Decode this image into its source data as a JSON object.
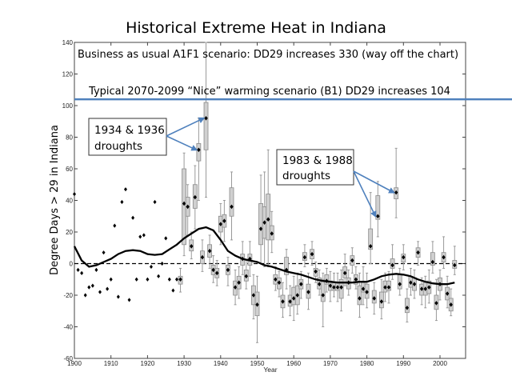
{
  "chart_data": {
    "type": "box",
    "title": "Historical Extreme Heat in Indiana",
    "xlabel": "Year",
    "ylabel": "Degree Days > 29 in Indiana",
    "xlim": [
      1900,
      2007
    ],
    "ylim": [
      -60,
      140
    ],
    "xticks": [
      1900,
      1910,
      1920,
      1930,
      1940,
      1950,
      1960,
      1970,
      1980,
      1990,
      2000
    ],
    "yticks": [
      -60,
      -40,
      -20,
      0,
      20,
      40,
      60,
      80,
      100,
      120,
      140
    ],
    "grid": false,
    "zero_line": {
      "value": 0,
      "style": "dashed"
    },
    "reference_line": {
      "value": 104,
      "color": "#4f81bd",
      "label": "Typical 2070-2099 “Nice” warming scenario (B1) DD29 increases 104"
    },
    "note_top": "Business as usual A1F1 scenario: DD29 increases 330 (way off the chart)",
    "annotations": [
      {
        "text_line1": "1934 & 1936",
        "text_line2": "droughts",
        "targets": [
          [
            1934,
            72
          ],
          [
            1936,
            92
          ]
        ]
      },
      {
        "text_line1": "1983 & 1988",
        "text_line2": "droughts",
        "targets": [
          [
            1983,
            30
          ],
          [
            1988,
            45
          ]
        ]
      }
    ],
    "points": [
      {
        "year": 1900,
        "value": 44
      },
      {
        "year": 1901,
        "value": -4
      },
      {
        "year": 1902,
        "value": -6
      },
      {
        "year": 1903,
        "value": -20
      },
      {
        "year": 1904,
        "value": -15
      },
      {
        "year": 1905,
        "value": -14
      },
      {
        "year": 1906,
        "value": -4
      },
      {
        "year": 1907,
        "value": -18
      },
      {
        "year": 1908,
        "value": 7
      },
      {
        "year": 1909,
        "value": -16
      },
      {
        "year": 1910,
        "value": -10
      },
      {
        "year": 1911,
        "value": 24
      },
      {
        "year": 1912,
        "value": -21
      },
      {
        "year": 1913,
        "value": 39
      },
      {
        "year": 1914,
        "value": 47
      },
      {
        "year": 1915,
        "value": -23
      },
      {
        "year": 1916,
        "value": 29
      },
      {
        "year": 1917,
        "value": -10
      },
      {
        "year": 1918,
        "value": 17
      },
      {
        "year": 1919,
        "value": 18
      },
      {
        "year": 1920,
        "value": -10
      },
      {
        "year": 1921,
        "value": -2
      },
      {
        "year": 1922,
        "value": 39
      },
      {
        "year": 1923,
        "value": -8
      },
      {
        "year": 1924,
        "value": 0
      },
      {
        "year": 1925,
        "value": 16
      },
      {
        "year": 1926,
        "value": -10
      },
      {
        "year": 1927,
        "value": -17
      },
      {
        "year": 1928,
        "value": -10
      }
    ],
    "boxes": [
      {
        "year": 1929,
        "median": -10,
        "q1": -13,
        "q3": -8,
        "wlo": -18,
        "whi": -3
      },
      {
        "year": 1930,
        "median": 38,
        "q1": 12,
        "q3": 60,
        "wlo": 5,
        "whi": 70
      },
      {
        "year": 1931,
        "median": 36,
        "q1": 30,
        "q3": 42,
        "wlo": 18,
        "whi": 50
      },
      {
        "year": 1932,
        "median": 11,
        "q1": 8,
        "q3": 15,
        "wlo": 3,
        "whi": 20
      },
      {
        "year": 1933,
        "median": 42,
        "q1": 35,
        "q3": 50,
        "wlo": 22,
        "whi": 62
      },
      {
        "year": 1934,
        "median": 72,
        "q1": 65,
        "q3": 76,
        "wlo": 40,
        "whi": 92
      },
      {
        "year": 1935,
        "median": 4,
        "q1": 0,
        "q3": 8,
        "wlo": -5,
        "whi": 15
      },
      {
        "year": 1936,
        "median": 92,
        "q1": 72,
        "q3": 102,
        "wlo": 42,
        "whi": 140
      },
      {
        "year": 1937,
        "median": 8,
        "q1": 4,
        "q3": 12,
        "wlo": -3,
        "whi": 18
      },
      {
        "year": 1938,
        "median": -4,
        "q1": -7,
        "q3": -1,
        "wlo": -12,
        "whi": 5
      },
      {
        "year": 1939,
        "median": -6,
        "q1": -9,
        "q3": -3,
        "wlo": -14,
        "whi": 2
      },
      {
        "year": 1940,
        "median": 25,
        "q1": 20,
        "q3": 30,
        "wlo": 12,
        "whi": 38
      },
      {
        "year": 1941,
        "median": 27,
        "q1": 23,
        "q3": 31,
        "wlo": 14,
        "whi": 40
      },
      {
        "year": 1942,
        "median": -4,
        "q1": -7,
        "q3": -1,
        "wlo": -14,
        "whi": 4
      },
      {
        "year": 1943,
        "median": 36,
        "q1": 30,
        "q3": 48,
        "wlo": 15,
        "whi": 58
      },
      {
        "year": 1944,
        "median": -15,
        "q1": -20,
        "q3": -11,
        "wlo": -26,
        "whi": -4
      },
      {
        "year": 1945,
        "median": -12,
        "q1": -16,
        "q3": -8,
        "wlo": -22,
        "whi": -2
      },
      {
        "year": 1946,
        "median": 3,
        "q1": -1,
        "q3": 6,
        "wlo": -7,
        "whi": 14
      },
      {
        "year": 1947,
        "median": -8,
        "q1": -11,
        "q3": -4,
        "wlo": -16,
        "whi": 2
      },
      {
        "year": 1948,
        "median": 3,
        "q1": -1,
        "q3": 6,
        "wlo": -8,
        "whi": 14
      },
      {
        "year": 1949,
        "median": -20,
        "q1": -26,
        "q3": -14,
        "wlo": -35,
        "whi": -7
      },
      {
        "year": 1950,
        "median": -26,
        "q1": -33,
        "q3": -18,
        "wlo": -50,
        "whi": -8
      },
      {
        "year": 1951,
        "median": 22,
        "q1": 12,
        "q3": 38,
        "wlo": 0,
        "whi": 56
      },
      {
        "year": 1952,
        "median": 26,
        "q1": 16,
        "q3": 36,
        "wlo": -2,
        "whi": 58
      },
      {
        "year": 1953,
        "median": 28,
        "q1": 15,
        "q3": 44,
        "wlo": -2,
        "whi": 72
      },
      {
        "year": 1954,
        "median": 19,
        "q1": 15,
        "q3": 24,
        "wlo": 7,
        "whi": 33
      },
      {
        "year": 1955,
        "median": -10,
        "q1": -13,
        "q3": -7,
        "wlo": -17,
        "whi": -2
      },
      {
        "year": 1956,
        "median": -12,
        "q1": -16,
        "q3": -9,
        "wlo": -21,
        "whi": -5
      },
      {
        "year": 1957,
        "median": -24,
        "q1": -28,
        "q3": -20,
        "wlo": -34,
        "whi": -12
      },
      {
        "year": 1958,
        "median": -4,
        "q1": -7,
        "q3": 4,
        "wlo": -16,
        "whi": 9
      },
      {
        "year": 1959,
        "median": -24,
        "q1": -27,
        "q3": -20,
        "wlo": -33,
        "whi": -14
      },
      {
        "year": 1960,
        "median": -22,
        "q1": -26,
        "q3": -15,
        "wlo": -36,
        "whi": -8
      },
      {
        "year": 1961,
        "median": -20,
        "q1": -26,
        "q3": -14,
        "wlo": -32,
        "whi": -6
      },
      {
        "year": 1962,
        "median": -13,
        "q1": -16,
        "q3": -10,
        "wlo": -22,
        "whi": -5
      },
      {
        "year": 1963,
        "median": 4,
        "q1": 2,
        "q3": 7,
        "wlo": -2,
        "whi": 12
      },
      {
        "year": 1964,
        "median": -18,
        "q1": -22,
        "q3": -13,
        "wlo": -29,
        "whi": -6
      },
      {
        "year": 1965,
        "median": 6,
        "q1": 3,
        "q3": 9,
        "wlo": -1,
        "whi": 14
      },
      {
        "year": 1966,
        "median": -5,
        "q1": -8,
        "q3": -3,
        "wlo": -12,
        "whi": 1
      },
      {
        "year": 1967,
        "median": -13,
        "q1": -16,
        "q3": -9,
        "wlo": -20,
        "whi": -4
      },
      {
        "year": 1968,
        "median": -20,
        "q1": -24,
        "q3": -10,
        "wlo": -40,
        "whi": -6
      },
      {
        "year": 1969,
        "median": -11,
        "q1": -13,
        "q3": -7,
        "wlo": -18,
        "whi": -3
      },
      {
        "year": 1970,
        "median": -14,
        "q1": -17,
        "q3": -11,
        "wlo": -24,
        "whi": -5
      },
      {
        "year": 1971,
        "median": -15,
        "q1": -17,
        "q3": -12,
        "wlo": -21,
        "whi": -6
      },
      {
        "year": 1972,
        "median": -15,
        "q1": -17,
        "q3": -12,
        "wlo": -24,
        "whi": -6
      },
      {
        "year": 1973,
        "median": -15,
        "q1": -22,
        "q3": -10,
        "wlo": -30,
        "whi": -4
      },
      {
        "year": 1974,
        "median": -6,
        "q1": -9,
        "q3": -2,
        "wlo": -14,
        "whi": 6
      },
      {
        "year": 1975,
        "median": -12,
        "q1": -16,
        "q3": -9,
        "wlo": -20,
        "whi": -4
      },
      {
        "year": 1976,
        "median": 2,
        "q1": -1,
        "q3": 5,
        "wlo": -6,
        "whi": 10
      },
      {
        "year": 1977,
        "median": -10,
        "q1": -13,
        "q3": -7,
        "wlo": -16,
        "whi": -2
      },
      {
        "year": 1978,
        "median": -22,
        "q1": -26,
        "q3": -14,
        "wlo": -34,
        "whi": -6
      },
      {
        "year": 1979,
        "median": -16,
        "q1": -18,
        "q3": -12,
        "wlo": -26,
        "whi": -2
      },
      {
        "year": 1980,
        "median": -18,
        "q1": -22,
        "q3": -13,
        "wlo": -28,
        "whi": -6
      },
      {
        "year": 1981,
        "median": 11,
        "q1": 9,
        "q3": 22,
        "wlo": 0,
        "whi": 45
      },
      {
        "year": 1982,
        "median": -22,
        "q1": -25,
        "q3": -17,
        "wlo": -32,
        "whi": -12
      },
      {
        "year": 1983,
        "median": 30,
        "q1": 28,
        "q3": 43,
        "wlo": 17,
        "whi": 52
      },
      {
        "year": 1984,
        "median": -24,
        "q1": -28,
        "q3": -18,
        "wlo": -35,
        "whi": -10
      },
      {
        "year": 1985,
        "median": -15,
        "q1": -18,
        "q3": -11,
        "wlo": -24,
        "whi": -6
      },
      {
        "year": 1986,
        "median": -15,
        "q1": -17,
        "q3": -11,
        "wlo": -25,
        "whi": -5
      },
      {
        "year": 1987,
        "median": -1,
        "q1": -3,
        "q3": 3,
        "wlo": -10,
        "whi": 12
      },
      {
        "year": 1988,
        "median": 45,
        "q1": 41,
        "q3": 48,
        "wlo": 29,
        "whi": 73
      },
      {
        "year": 1989,
        "median": -13,
        "q1": -16,
        "q3": -7,
        "wlo": -20,
        "whi": -3
      },
      {
        "year": 1990,
        "median": 4,
        "q1": 1,
        "q3": 6,
        "wlo": -4,
        "whi": 12
      },
      {
        "year": 1991,
        "median": -28,
        "q1": -31,
        "q3": -22,
        "wlo": -37,
        "whi": -16
      },
      {
        "year": 1992,
        "median": -12,
        "q1": -15,
        "q3": -8,
        "wlo": -20,
        "whi": -3
      },
      {
        "year": 1993,
        "median": -13,
        "q1": -17,
        "q3": -9,
        "wlo": -22,
        "whi": -4
      },
      {
        "year": 1994,
        "median": 7,
        "q1": 4,
        "q3": 10,
        "wlo": -1,
        "whi": 14
      },
      {
        "year": 1995,
        "median": -16,
        "q1": -20,
        "q3": -13,
        "wlo": -26,
        "whi": -9
      },
      {
        "year": 1996,
        "median": -16,
        "q1": -20,
        "q3": -12,
        "wlo": -28,
        "whi": -8
      },
      {
        "year": 1997,
        "median": -15,
        "q1": -19,
        "q3": -11,
        "wlo": -25,
        "whi": -4
      },
      {
        "year": 1998,
        "median": 1,
        "q1": -1,
        "q3": 7,
        "wlo": -6,
        "whi": 14
      },
      {
        "year": 1999,
        "median": -25,
        "q1": -29,
        "q3": -20,
        "wlo": -36,
        "whi": -10
      },
      {
        "year": 2000,
        "median": -13,
        "q1": -17,
        "q3": -9,
        "wlo": -23,
        "whi": -4
      },
      {
        "year": 2001,
        "median": 4,
        "q1": 1,
        "q3": 7,
        "wlo": -3,
        "whi": 17
      },
      {
        "year": 2002,
        "median": -19,
        "q1": -23,
        "q3": -15,
        "wlo": -28,
        "whi": -8
      },
      {
        "year": 2003,
        "median": -26,
        "q1": -30,
        "q3": -22,
        "wlo": -33,
        "whi": -16
      },
      {
        "year": 2004,
        "median": -1,
        "q1": -3,
        "q3": 2,
        "wlo": -7,
        "whi": 11
      }
    ],
    "smooth_line": {
      "x": [
        1900,
        1902,
        1904,
        1906,
        1908,
        1910,
        1912,
        1914,
        1916,
        1918,
        1920,
        1922,
        1924,
        1926,
        1928,
        1930,
        1932,
        1934,
        1936,
        1938,
        1940,
        1942,
        1944,
        1946,
        1948,
        1950,
        1952,
        1954,
        1956,
        1958,
        1960,
        1962,
        1964,
        1966,
        1968,
        1970,
        1972,
        1974,
        1976,
        1978,
        1980,
        1982,
        1984,
        1986,
        1988,
        1990,
        1992,
        1994,
        1996,
        1998,
        2000,
        2002,
        2004
      ],
      "y": [
        11,
        2,
        -2,
        -1,
        1,
        3,
        6,
        8,
        8.5,
        8,
        6,
        5.5,
        6,
        9,
        12,
        16,
        19,
        22,
        23,
        21,
        15,
        8,
        5,
        3,
        2,
        1,
        -1,
        -2,
        -3.5,
        -5,
        -6,
        -7,
        -8.5,
        -10,
        -11,
        -11.5,
        -12,
        -12,
        -12,
        -11.5,
        -11.5,
        -10,
        -8,
        -7,
        -6.5,
        -7,
        -8,
        -10,
        -11.5,
        -12.5,
        -13,
        -13,
        -12
      ]
    }
  }
}
